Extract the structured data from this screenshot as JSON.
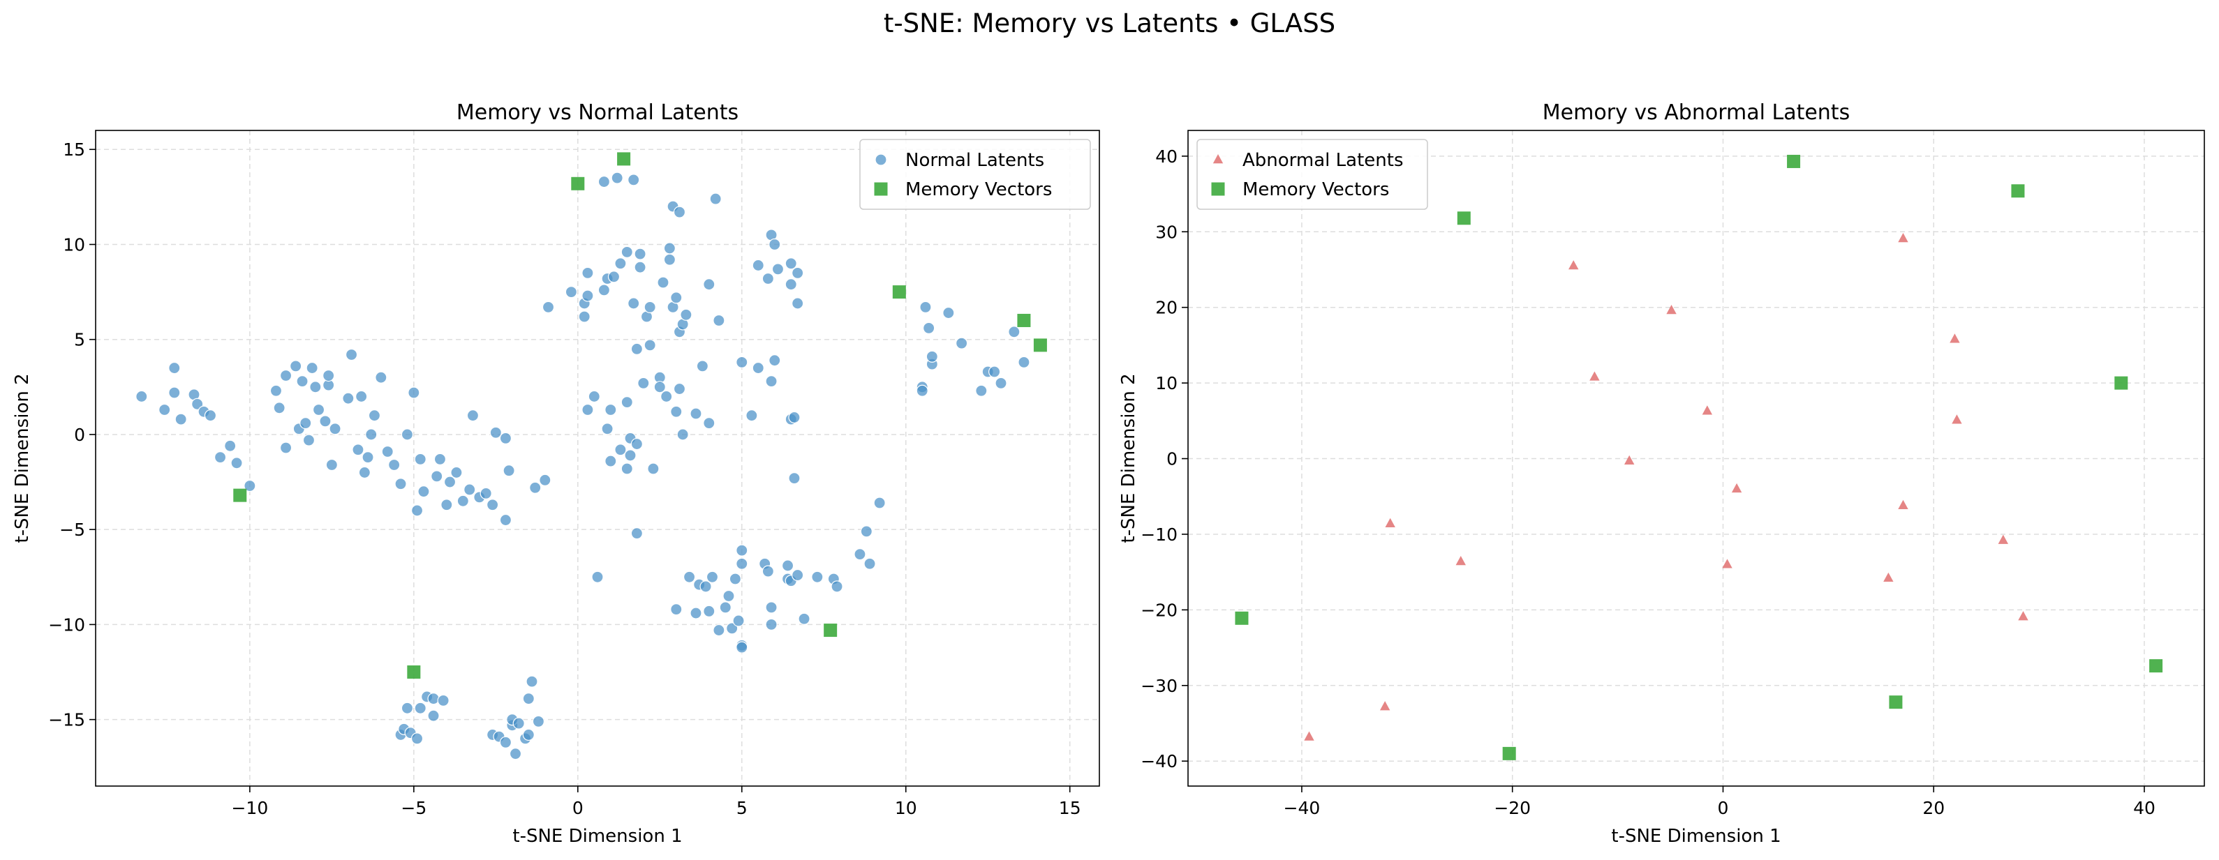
{
  "figure": {
    "title": "t-SNE: Memory vs Latents • GLASS"
  },
  "colors": {
    "normal": "#4a90c8",
    "abnormal": "#e07070",
    "memory": "#3daa3d",
    "grid": "#dddddd"
  },
  "chart_data": [
    {
      "type": "scatter",
      "title": "Memory vs Normal Latents",
      "xlabel": "t-SNE Dimension 1",
      "ylabel": "t-SNE Dimension 2",
      "xlim": [
        -14.7,
        15.9
      ],
      "ylim": [
        -18.5,
        16.0
      ],
      "xticks": [
        -10,
        -5,
        0,
        5,
        10,
        15
      ],
      "yticks": [
        -15,
        -10,
        -5,
        0,
        5,
        10,
        15
      ],
      "grid": true,
      "legend": "top-right",
      "series": [
        {
          "name": "Normal Latents",
          "marker": "circle",
          "color": "#4a90c8",
          "points": [
            [
              -13.3,
              2.0
            ],
            [
              -12.6,
              1.3
            ],
            [
              -12.3,
              3.5
            ],
            [
              -12.3,
              2.2
            ],
            [
              -12.1,
              0.8
            ],
            [
              -11.7,
              2.1
            ],
            [
              -11.6,
              1.6
            ],
            [
              -11.4,
              1.2
            ],
            [
              -11.2,
              1.0
            ],
            [
              -10.9,
              -1.2
            ],
            [
              -10.6,
              -0.6
            ],
            [
              -10.4,
              -1.5
            ],
            [
              -10.0,
              -2.7
            ],
            [
              -9.2,
              2.3
            ],
            [
              -9.1,
              1.4
            ],
            [
              -8.9,
              3.1
            ],
            [
              -8.9,
              -0.7
            ],
            [
              -8.6,
              3.6
            ],
            [
              -8.5,
              0.3
            ],
            [
              -8.4,
              2.8
            ],
            [
              -8.3,
              0.6
            ],
            [
              -8.2,
              -0.3
            ],
            [
              -8.1,
              3.5
            ],
            [
              -8.0,
              2.5
            ],
            [
              -7.9,
              1.3
            ],
            [
              -7.7,
              0.7
            ],
            [
              -7.6,
              2.6
            ],
            [
              -7.6,
              3.1
            ],
            [
              -7.5,
              -1.6
            ],
            [
              -7.4,
              0.3
            ],
            [
              -7.0,
              1.9
            ],
            [
              -6.9,
              4.2
            ],
            [
              -6.7,
              -0.8
            ],
            [
              -6.6,
              2.0
            ],
            [
              -6.5,
              -2.0
            ],
            [
              -6.4,
              -1.2
            ],
            [
              -6.3,
              0.0
            ],
            [
              -6.2,
              1.0
            ],
            [
              -6.0,
              3.0
            ],
            [
              -5.8,
              -0.9
            ],
            [
              -5.6,
              -1.6
            ],
            [
              -5.4,
              -2.6
            ],
            [
              -5.2,
              0.0
            ],
            [
              -5.0,
              2.2
            ],
            [
              -4.9,
              -4.0
            ],
            [
              -4.8,
              -1.3
            ],
            [
              -4.7,
              -3.0
            ],
            [
              -4.3,
              -2.2
            ],
            [
              -4.2,
              -1.3
            ],
            [
              -4.0,
              -3.7
            ],
            [
              -3.9,
              -2.5
            ],
            [
              -3.7,
              -2.0
            ],
            [
              -3.5,
              -3.5
            ],
            [
              -3.3,
              -2.9
            ],
            [
              -3.2,
              1.0
            ],
            [
              -3.0,
              -3.3
            ],
            [
              -2.8,
              -3.1
            ],
            [
              -2.6,
              -3.7
            ],
            [
              -2.5,
              0.1
            ],
            [
              -2.2,
              -0.2
            ],
            [
              -2.2,
              -4.5
            ],
            [
              -2.1,
              -1.9
            ],
            [
              -1.3,
              -2.8
            ],
            [
              -1.0,
              -2.4
            ],
            [
              -0.9,
              6.7
            ],
            [
              -0.2,
              7.5
            ],
            [
              0.2,
              6.9
            ],
            [
              0.2,
              6.2
            ],
            [
              0.3,
              7.3
            ],
            [
              0.3,
              8.5
            ],
            [
              0.3,
              1.3
            ],
            [
              0.5,
              2.0
            ],
            [
              0.6,
              -7.5
            ],
            [
              0.8,
              13.3
            ],
            [
              0.8,
              7.6
            ],
            [
              0.9,
              8.2
            ],
            [
              0.9,
              0.3
            ],
            [
              1.0,
              -1.4
            ],
            [
              1.0,
              1.3
            ],
            [
              1.1,
              8.3
            ],
            [
              1.2,
              13.5
            ],
            [
              1.3,
              9.0
            ],
            [
              1.3,
              -0.8
            ],
            [
              1.5,
              9.6
            ],
            [
              1.5,
              1.7
            ],
            [
              1.5,
              -1.8
            ],
            [
              1.6,
              -1.1
            ],
            [
              1.6,
              -0.2
            ],
            [
              1.7,
              13.4
            ],
            [
              1.7,
              6.9
            ],
            [
              1.8,
              4.5
            ],
            [
              1.8,
              -0.5
            ],
            [
              1.8,
              -5.2
            ],
            [
              1.9,
              8.8
            ],
            [
              1.9,
              9.5
            ],
            [
              2.0,
              2.7
            ],
            [
              2.1,
              6.2
            ],
            [
              2.2,
              6.7
            ],
            [
              2.2,
              4.7
            ],
            [
              2.3,
              -1.8
            ],
            [
              2.5,
              3.0
            ],
            [
              2.5,
              2.5
            ],
            [
              2.6,
              8.0
            ],
            [
              2.7,
              2.0
            ],
            [
              2.8,
              9.8
            ],
            [
              2.8,
              9.2
            ],
            [
              2.9,
              12.0
            ],
            [
              2.9,
              6.7
            ],
            [
              3.0,
              7.2
            ],
            [
              3.0,
              1.2
            ],
            [
              3.0,
              -9.2
            ],
            [
              3.1,
              11.7
            ],
            [
              3.1,
              5.4
            ],
            [
              3.1,
              2.4
            ],
            [
              3.2,
              0.0
            ],
            [
              3.2,
              5.8
            ],
            [
              3.3,
              6.3
            ],
            [
              3.4,
              -7.5
            ],
            [
              3.6,
              1.1
            ],
            [
              3.6,
              -9.4
            ],
            [
              3.7,
              -7.9
            ],
            [
              3.8,
              3.6
            ],
            [
              3.9,
              -8.0
            ],
            [
              4.0,
              -9.3
            ],
            [
              4.0,
              0.6
            ],
            [
              4.0,
              7.9
            ],
            [
              4.1,
              -7.5
            ],
            [
              4.2,
              12.4
            ],
            [
              4.3,
              6.0
            ],
            [
              4.3,
              -10.3
            ],
            [
              4.5,
              -9.1
            ],
            [
              4.6,
              -8.5
            ],
            [
              4.7,
              -10.2
            ],
            [
              4.8,
              -7.6
            ],
            [
              4.9,
              -9.8
            ],
            [
              5.0,
              -11.1
            ],
            [
              5.0,
              -11.2
            ],
            [
              5.0,
              -6.1
            ],
            [
              5.0,
              -6.8
            ],
            [
              5.0,
              3.8
            ],
            [
              5.3,
              1.0
            ],
            [
              5.5,
              3.5
            ],
            [
              5.5,
              8.9
            ],
            [
              5.7,
              -6.8
            ],
            [
              5.8,
              -7.2
            ],
            [
              5.8,
              8.2
            ],
            [
              5.9,
              10.5
            ],
            [
              5.9,
              2.8
            ],
            [
              5.9,
              -10.0
            ],
            [
              5.9,
              -9.1
            ],
            [
              6.0,
              10.0
            ],
            [
              6.0,
              3.9
            ],
            [
              6.1,
              8.7
            ],
            [
              6.4,
              -7.6
            ],
            [
              6.4,
              -6.9
            ],
            [
              6.5,
              7.9
            ],
            [
              6.5,
              9.0
            ],
            [
              6.5,
              0.8
            ],
            [
              6.5,
              -7.7
            ],
            [
              6.6,
              0.9
            ],
            [
              6.6,
              -2.3
            ],
            [
              6.7,
              8.5
            ],
            [
              6.7,
              6.9
            ],
            [
              6.9,
              -9.7
            ],
            [
              6.7,
              -7.4
            ],
            [
              7.3,
              -7.5
            ],
            [
              7.8,
              -7.6
            ],
            [
              7.9,
              -8.0
            ],
            [
              8.6,
              -6.3
            ],
            [
              8.8,
              -5.1
            ],
            [
              8.9,
              -6.8
            ],
            [
              9.2,
              -3.6
            ],
            [
              10.5,
              2.5
            ],
            [
              10.5,
              2.3
            ],
            [
              10.6,
              6.7
            ],
            [
              10.7,
              5.6
            ],
            [
              10.8,
              3.7
            ],
            [
              10.8,
              4.1
            ],
            [
              11.3,
              6.4
            ],
            [
              11.7,
              4.8
            ],
            [
              12.3,
              2.3
            ],
            [
              12.5,
              3.3
            ],
            [
              12.7,
              3.3
            ],
            [
              12.9,
              2.7
            ],
            [
              13.3,
              5.4
            ],
            [
              13.6,
              3.8
            ],
            [
              -5.4,
              -15.8
            ],
            [
              -5.3,
              -15.5
            ],
            [
              -5.2,
              -14.4
            ],
            [
              -5.1,
              -15.7
            ],
            [
              -4.9,
              -16.0
            ],
            [
              -4.8,
              -14.4
            ],
            [
              -4.6,
              -13.8
            ],
            [
              -4.4,
              -13.9
            ],
            [
              -4.4,
              -14.8
            ],
            [
              -4.1,
              -14.0
            ],
            [
              -2.6,
              -15.8
            ],
            [
              -2.4,
              -15.9
            ],
            [
              -2.2,
              -16.2
            ],
            [
              -2.0,
              -15.3
            ],
            [
              -2.0,
              -15.0
            ],
            [
              -1.9,
              -16.8
            ],
            [
              -1.8,
              -15.2
            ],
            [
              -1.6,
              -16.0
            ],
            [
              -1.5,
              -15.8
            ],
            [
              -1.5,
              -13.9
            ],
            [
              -1.4,
              -13.0
            ],
            [
              -1.2,
              -15.1
            ]
          ]
        },
        {
          "name": "Memory Vectors",
          "marker": "square",
          "color": "#3daa3d",
          "points": [
            [
              1.4,
              14.5
            ],
            [
              0.0,
              13.2
            ],
            [
              9.8,
              7.5
            ],
            [
              13.6,
              6.0
            ],
            [
              14.1,
              4.7
            ],
            [
              -10.3,
              -3.2
            ],
            [
              7.7,
              -10.3
            ],
            [
              -5.0,
              -12.5
            ]
          ]
        }
      ]
    },
    {
      "type": "scatter",
      "title": "Memory vs Abnormal Latents",
      "xlabel": "t-SNE Dimension 1",
      "ylabel": "t-SNE Dimension 2",
      "xlim": [
        -50.8,
        45.7
      ],
      "ylim": [
        -43.3,
        43.4
      ],
      "xticks": [
        -40,
        -20,
        0,
        20,
        40
      ],
      "yticks": [
        -40,
        -30,
        -20,
        -10,
        0,
        10,
        20,
        30,
        40
      ],
      "grid": true,
      "legend": "top-left",
      "series": [
        {
          "name": "Abnormal Latents",
          "marker": "triangle",
          "color": "#e07070",
          "points": [
            [
              -14.2,
              25.5
            ],
            [
              -4.9,
              19.6
            ],
            [
              -12.2,
              10.8
            ],
            [
              -1.5,
              6.3
            ],
            [
              -8.9,
              -0.3
            ],
            [
              1.3,
              -4.0
            ],
            [
              -31.6,
              -8.6
            ],
            [
              -24.9,
              -13.6
            ],
            [
              0.4,
              -14.0
            ],
            [
              -32.1,
              -32.8
            ],
            [
              -39.3,
              -36.8
            ],
            [
              17.1,
              29.1
            ],
            [
              22.0,
              15.8
            ],
            [
              22.2,
              5.1
            ],
            [
              17.1,
              -6.2
            ],
            [
              26.6,
              -10.8
            ],
            [
              15.7,
              -15.8
            ],
            [
              28.5,
              -20.9
            ]
          ]
        },
        {
          "name": "Memory Vectors",
          "marker": "square",
          "color": "#3daa3d",
          "points": [
            [
              6.7,
              39.3
            ],
            [
              28.0,
              35.4
            ],
            [
              -24.6,
              31.8
            ],
            [
              37.8,
              10.0
            ],
            [
              -45.7,
              -21.1
            ],
            [
              41.1,
              -27.4
            ],
            [
              16.4,
              -32.2
            ],
            [
              -20.3,
              -39.0
            ]
          ]
        }
      ]
    }
  ]
}
